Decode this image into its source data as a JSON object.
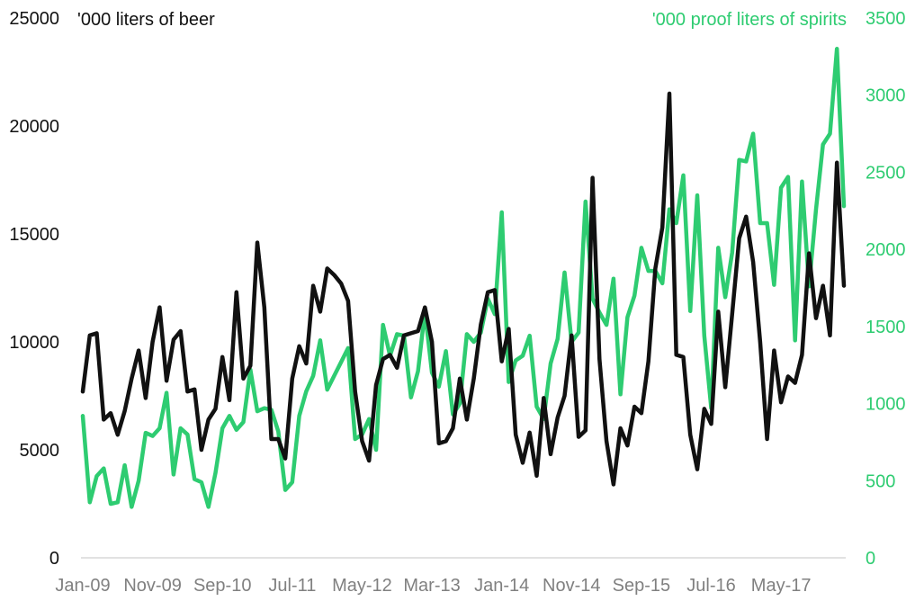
{
  "chart_data": {
    "type": "line",
    "x_tick_labels": [
      "Jan-09",
      "Nov-09",
      "Sep-10",
      "Jul-11",
      "May-12",
      "Mar-13",
      "Jan-14",
      "Nov-14",
      "Sep-15",
      "Jul-16",
      "May-17"
    ],
    "left_axis": {
      "label": "'000 liters of beer",
      "ylim": [
        0,
        25000
      ],
      "ticks": [
        "0",
        "5000",
        "10000",
        "15000",
        "20000",
        "25000"
      ],
      "color": "#111111"
    },
    "right_axis": {
      "label": "'000 proof liters of spirits",
      "ylim": [
        0,
        3500
      ],
      "ticks": [
        "0",
        "500",
        "1000",
        "1500",
        "2000",
        "2500",
        "3000",
        "3500"
      ],
      "color": "#2ECC71"
    },
    "x_start": "Jan-09",
    "x_interval_months": 1,
    "series": [
      {
        "axis": "left",
        "color": "#111111",
        "values": [
          7700,
          10300,
          10400,
          6400,
          6700,
          5700,
          6800,
          8300,
          9600,
          7400,
          10000,
          11600,
          8200,
          10100,
          10500,
          7700,
          7800,
          5000,
          6400,
          6900,
          9300,
          7300,
          12300,
          8300,
          8900,
          14600,
          11600,
          5500,
          5500,
          4600,
          8300,
          9800,
          9000,
          12600,
          11400,
          13400,
          13100,
          12700,
          11900,
          7700,
          5400,
          4500,
          8000,
          9200,
          9400,
          8800,
          10300,
          10400,
          10500,
          11600,
          10000,
          5300,
          5400,
          6000,
          8300,
          6400,
          8300,
          10800,
          12300,
          12400,
          9100,
          10600,
          5700,
          4400,
          5800,
          3800,
          7400,
          4800,
          6500,
          7500,
          10300,
          5600,
          5900,
          17600,
          9200,
          5400,
          3400,
          6000,
          5200,
          7000,
          6700,
          9100,
          13400,
          15300,
          21500,
          9400,
          9300,
          5700,
          4100,
          6900,
          6200,
          11400,
          7900,
          11300,
          14800,
          15800,
          13700,
          10000,
          5500,
          9600,
          7200,
          8400,
          8100,
          9400,
          14100,
          11100,
          12600,
          10300,
          18300,
          12600
        ]
      },
      {
        "axis": "right",
        "color": "#2ECC71",
        "values": [
          920,
          360,
          530,
          580,
          350,
          360,
          600,
          330,
          500,
          810,
          790,
          840,
          1070,
          540,
          840,
          800,
          510,
          490,
          330,
          550,
          840,
          920,
          830,
          880,
          1220,
          950,
          970,
          960,
          820,
          440,
          490,
          920,
          1080,
          1180,
          1410,
          1090,
          1180,
          1270,
          1360,
          770,
          800,
          900,
          700,
          1510,
          1310,
          1450,
          1440,
          1040,
          1210,
          1600,
          1200,
          1110,
          1340,
          930,
          1000,
          1450,
          1400,
          1460,
          1680,
          1580,
          2240,
          1140,
          1280,
          1310,
          1440,
          980,
          900,
          1260,
          1420,
          1850,
          1400,
          1460,
          2310,
          1680,
          1590,
          1510,
          1810,
          1060,
          1560,
          1700,
          2010,
          1860,
          1860,
          1780,
          2260,
          2170,
          2480,
          1600,
          2350,
          1440,
          970,
          2010,
          1690,
          1980,
          2580,
          2570,
          2750,
          2170,
          2170,
          1770,
          2400,
          2470,
          1410,
          2440,
          1760,
          2260,
          2680,
          2750,
          3300,
          2280
        ]
      }
    ]
  }
}
